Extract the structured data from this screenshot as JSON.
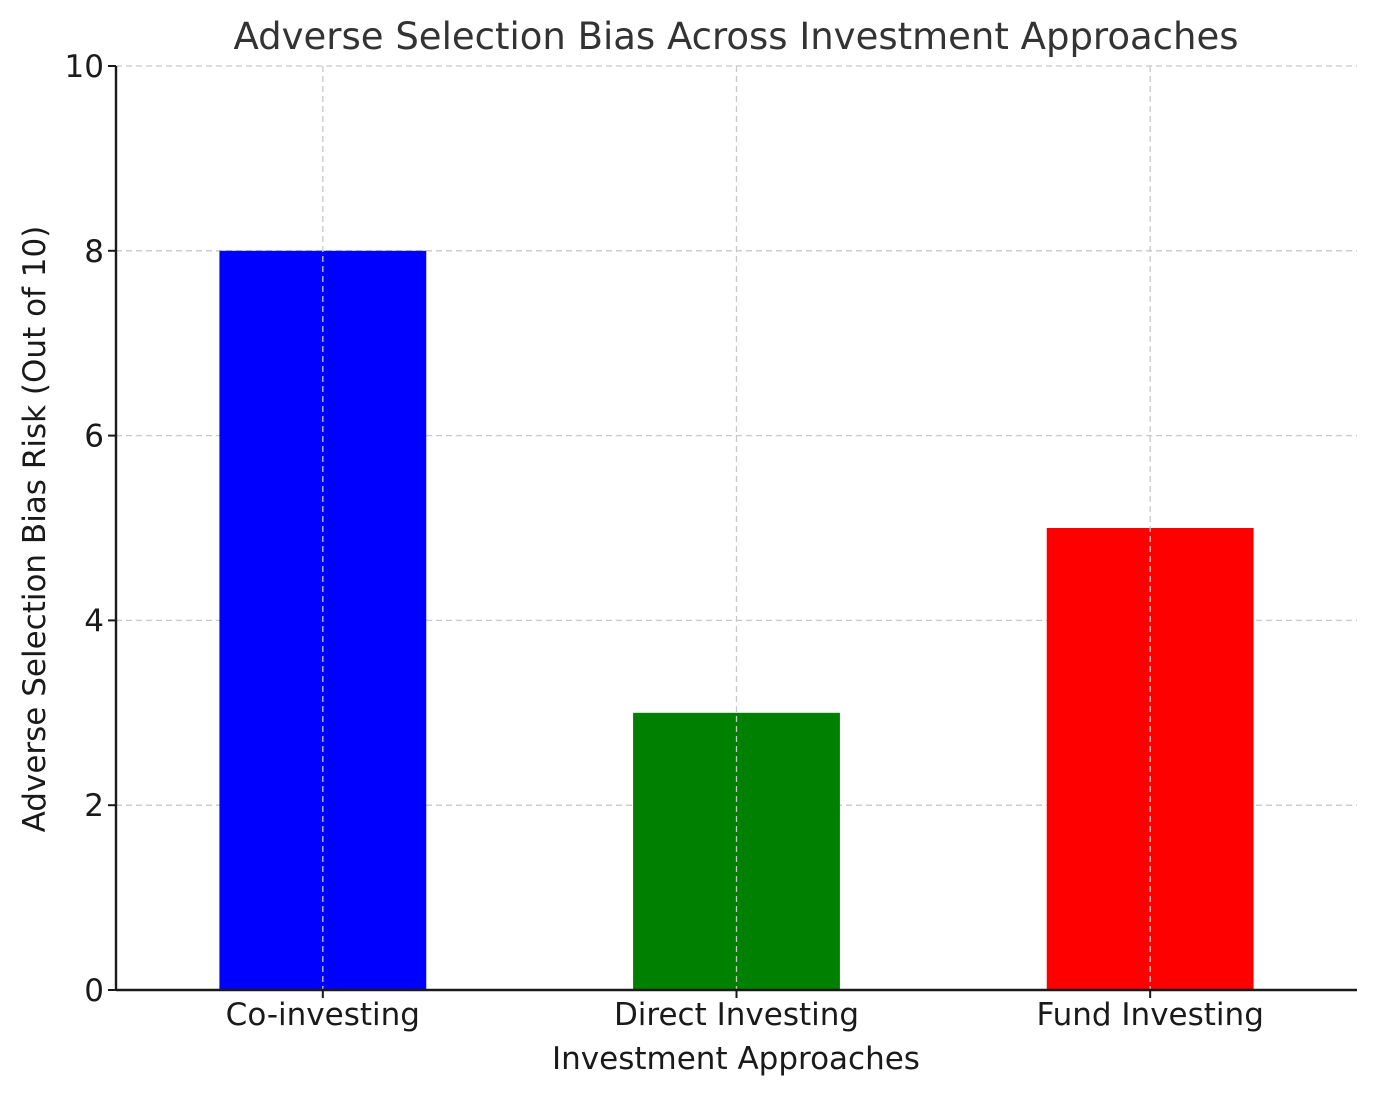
{
  "chart_data": {
    "type": "bar",
    "title": "Adverse Selection Bias Across Investment Approaches",
    "xlabel": "Investment Approaches",
    "ylabel": "Adverse Selection Bias Risk (Out of 10)",
    "categories": [
      "Co-investing",
      "Direct Investing",
      "Fund Investing"
    ],
    "values": [
      8,
      3,
      5
    ],
    "colors": [
      "#0000ff",
      "#008000",
      "#ff0000"
    ],
    "ylim": [
      0,
      10
    ],
    "yticks": [
      0,
      2,
      4,
      6,
      8,
      10
    ],
    "grid": true,
    "legend": "none"
  }
}
